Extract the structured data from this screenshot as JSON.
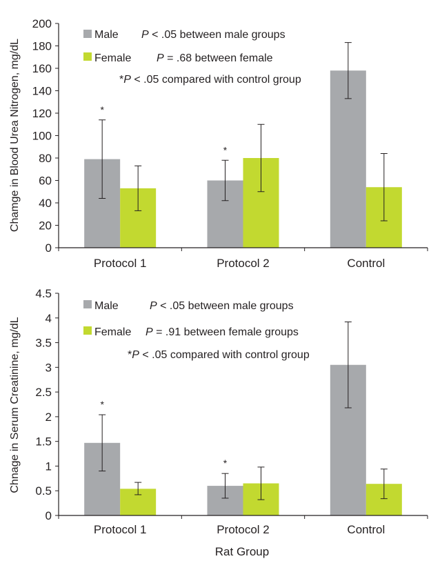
{
  "colors": {
    "male": "#a7a9ac",
    "female": "#c2d930",
    "axis": "#231f20",
    "error": "#231f20"
  },
  "shared_xlabel": "Rat Group",
  "chart_data": [
    {
      "type": "bar",
      "categories": [
        "Protocol 1",
        "Protocol 2",
        "Control"
      ],
      "ylabel": "Chamge in Blood Urea Nitrogen, mg/dL",
      "ylim": [
        0,
        200
      ],
      "yticks": [
        "0",
        "20",
        "40",
        "60",
        "80",
        "100",
        "120",
        "140",
        "160",
        "180",
        "200"
      ],
      "grid": false,
      "series": [
        {
          "name": "Male",
          "values": [
            79,
            60,
            158
          ],
          "err_low": [
            44,
            42,
            133
          ],
          "err_high": [
            114,
            78,
            183
          ]
        },
        {
          "name": "Female",
          "values": [
            53,
            80,
            54
          ],
          "err_low": [
            33,
            50,
            24
          ],
          "err_high": [
            73,
            110,
            84
          ]
        }
      ],
      "significance": [
        {
          "category": "Protocol 1",
          "series": "Male",
          "mark": "*"
        },
        {
          "category": "Protocol 2",
          "series": "Male",
          "mark": "*"
        }
      ],
      "annotations": [
        {
          "italic": "P",
          "rest": " < .05 between male groups"
        },
        {
          "italic": "P",
          "rest": " = .68 between female"
        },
        {
          "prefix": "*",
          "italic": "P",
          "rest": " < .05 compared with control group"
        }
      ]
    },
    {
      "type": "bar",
      "categories": [
        "Protocol 1",
        "Protocol 2",
        "Control"
      ],
      "ylabel": "Chnage in Serum Creatinine, mg/dL",
      "ylim": [
        0,
        4.5
      ],
      "yticks": [
        "0",
        "0.5",
        "1",
        "1.5",
        "2",
        "2.5",
        "3",
        "3.5",
        "4",
        "4.5"
      ],
      "grid": false,
      "series": [
        {
          "name": "Male",
          "values": [
            1.47,
            0.6,
            3.05
          ],
          "err_low": [
            0.9,
            0.35,
            2.18
          ],
          "err_high": [
            2.04,
            0.85,
            3.92
          ]
        },
        {
          "name": "Female",
          "values": [
            0.54,
            0.65,
            0.64
          ],
          "err_low": [
            0.42,
            0.32,
            0.34
          ],
          "err_high": [
            0.67,
            0.98,
            0.94
          ]
        }
      ],
      "significance": [
        {
          "category": "Protocol 1",
          "series": "Male",
          "mark": "*"
        },
        {
          "category": "Protocol 2",
          "series": "Male",
          "mark": "*"
        }
      ],
      "annotations": [
        {
          "italic": "P",
          "rest": " < .05 between male groups"
        },
        {
          "italic": "P",
          "rest": " = .91 between female groups"
        },
        {
          "prefix": "*",
          "italic": "P",
          "rest": " < .05 compared with control group"
        }
      ]
    }
  ]
}
